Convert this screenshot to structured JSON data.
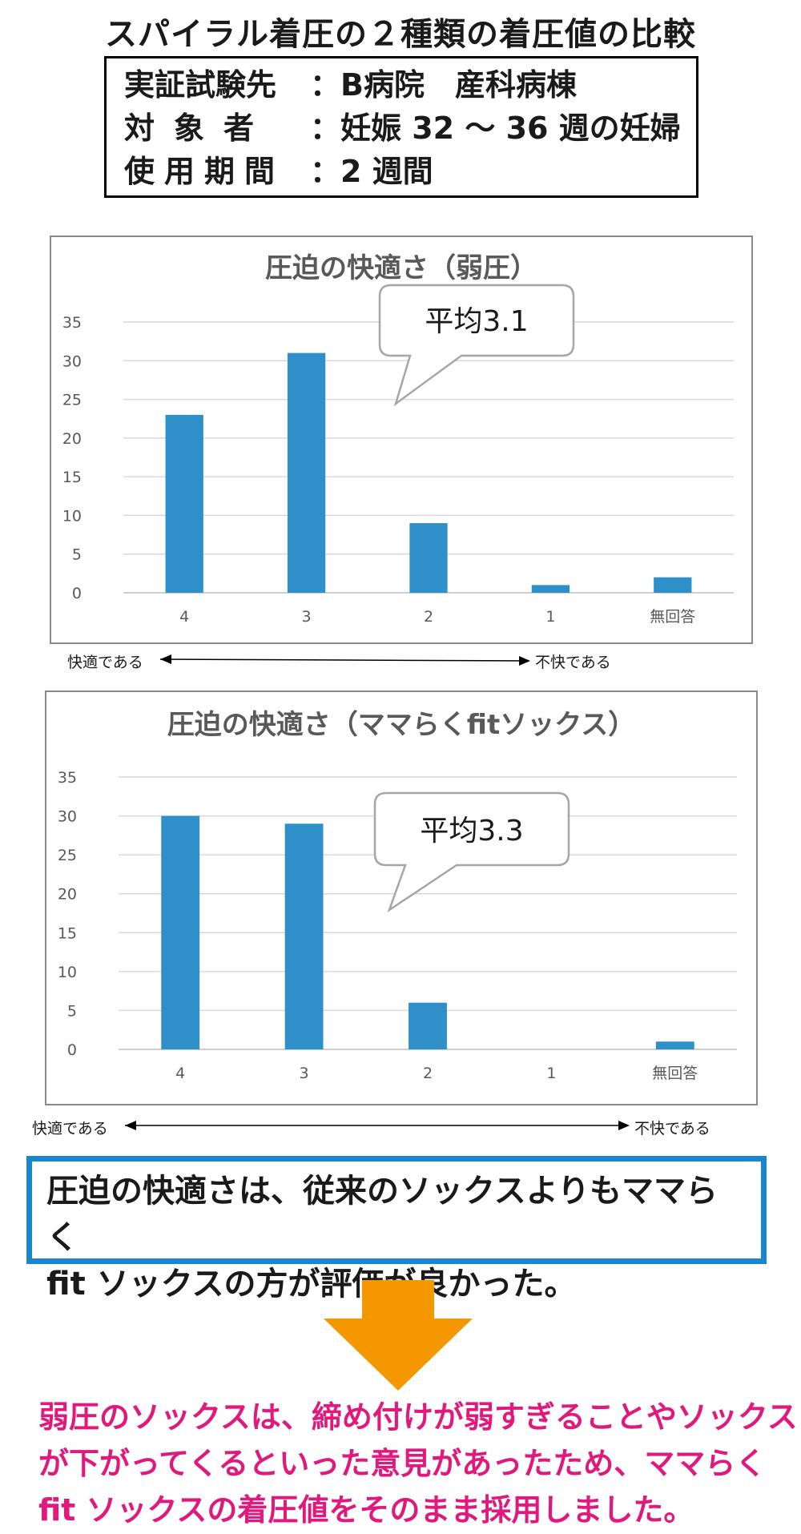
{
  "page_title": "スパイラル着圧の２種類の着圧値の比較",
  "info": [
    {
      "label": "実証試験先",
      "value": "：B病院　産科病棟"
    },
    {
      "label": "対象者",
      "value": "：妊娠 32 ～ 36 週の妊婦"
    },
    {
      "label": "使用期間",
      "value": "：2 週間"
    }
  ],
  "colors": {
    "bar": "#2e8fc9",
    "grid": "#d9d9d9",
    "conclusion_border": "#1a86cf",
    "arrow": "#f39800",
    "note_text": "#e0197d"
  },
  "chart_data": [
    {
      "type": "bar",
      "title": "圧迫の快適さ（弱圧）",
      "categories": [
        "4",
        "3",
        "2",
        "1",
        "無回答"
      ],
      "values": [
        23,
        31,
        9,
        1,
        2
      ],
      "ylim": [
        0,
        35
      ],
      "yticks": [
        "0",
        "5",
        "10",
        "15",
        "20",
        "25",
        "30",
        "35"
      ],
      "grid": true,
      "annotation": "平均3.1"
    },
    {
      "type": "bar",
      "title": "圧迫の快適さ（ママらくfitソックス）",
      "categories": [
        "4",
        "3",
        "2",
        "1",
        "無回答"
      ],
      "values": [
        30,
        29,
        6,
        0,
        1
      ],
      "ylim": [
        0,
        35
      ],
      "yticks": [
        "0",
        "5",
        "10",
        "15",
        "20",
        "25",
        "30",
        "35"
      ],
      "grid": true,
      "annotation": "平均3.3"
    }
  ],
  "scale": {
    "left": "快適である",
    "right": "不快である"
  },
  "conclusion": [
    "圧迫の快適さは、従来のソックスよりもママらく",
    "fit ソックスの方が評価が良かった。"
  ],
  "note": [
    "弱圧のソックスは、締め付けが弱すぎることやソックス",
    "が下がってくるといった意見があったため、ママらく",
    "fit ソックスの着圧値をそのまま採用しました。"
  ]
}
